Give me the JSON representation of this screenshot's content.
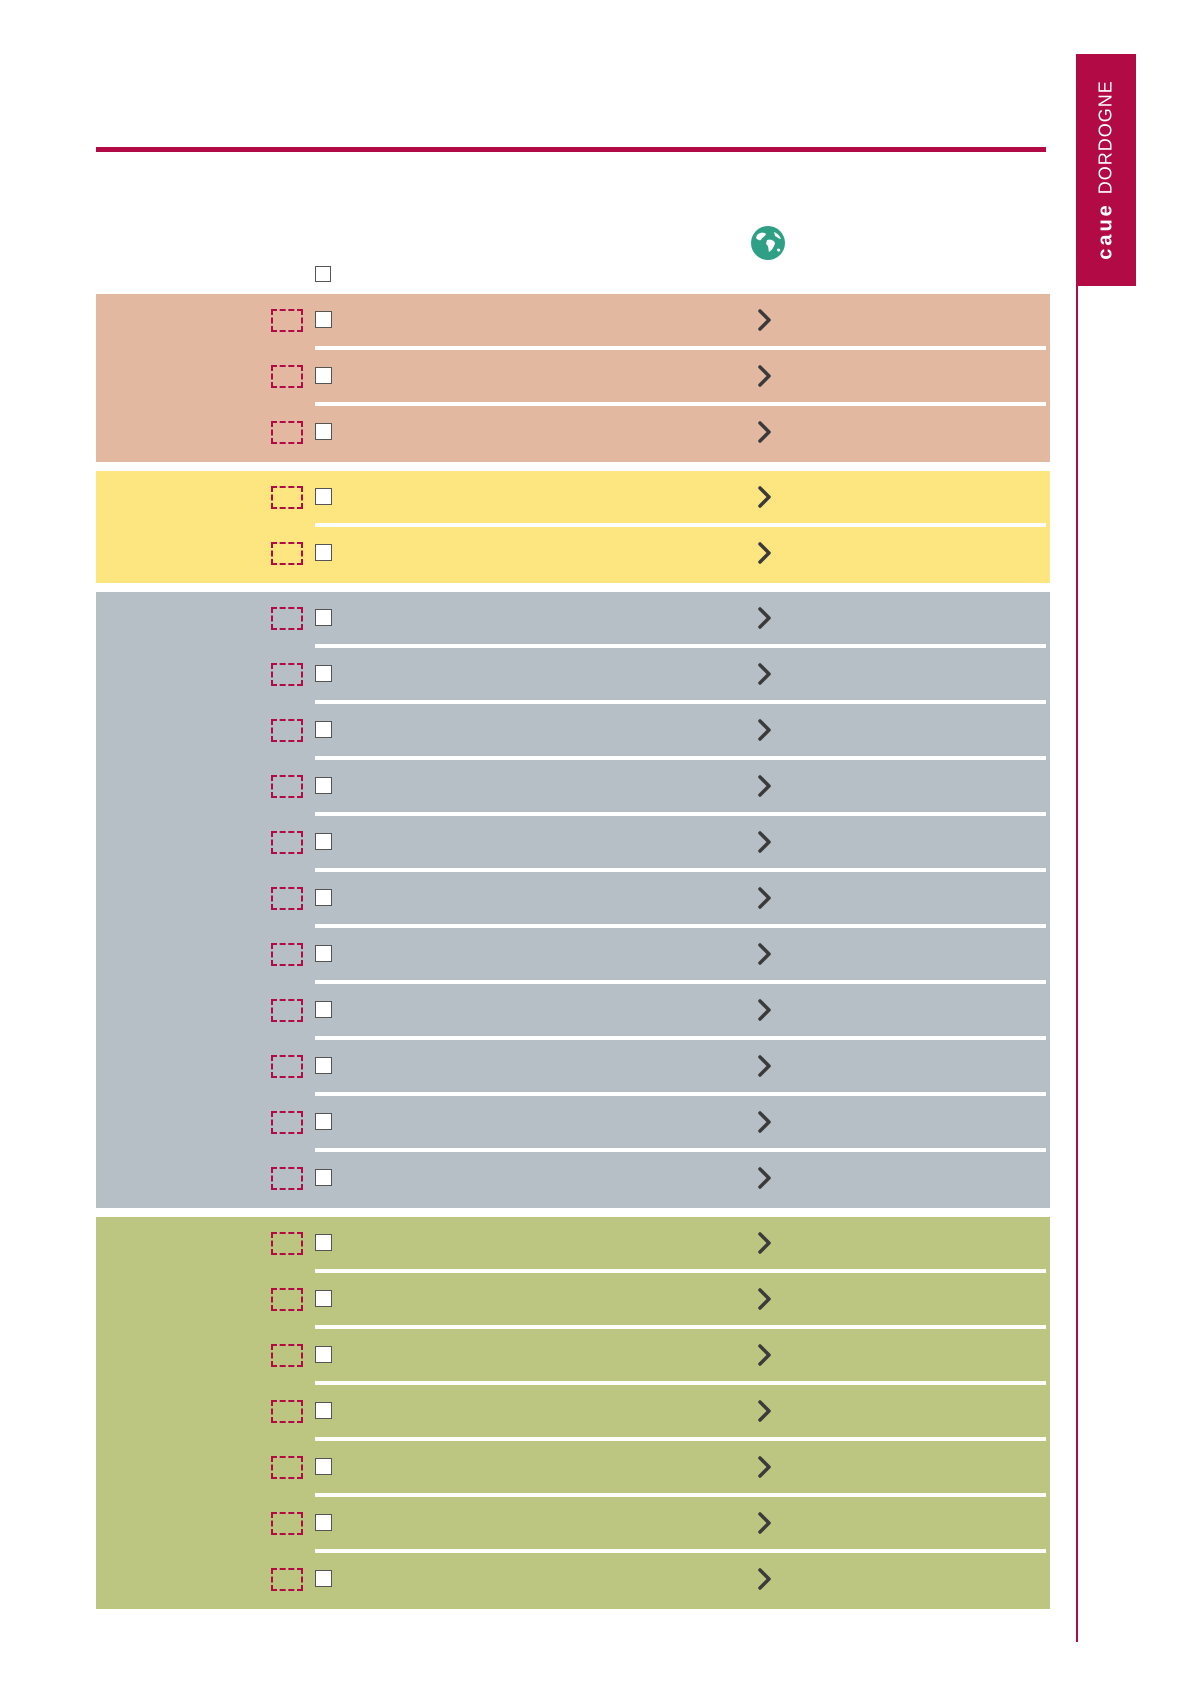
{
  "brand": {
    "bold": "caue",
    "light": "DORDOGNE"
  },
  "colors": {
    "accent": "#b20a45",
    "group_1": "#e3b8a0",
    "group_2": "#fde67f",
    "group_3": "#b5bfc5",
    "group_4": "#bdc680",
    "chevron": "#3a3a3a",
    "globe": "#2f9f86"
  },
  "icons": {
    "globe": "globe-icon",
    "row_arrow": "chevron-right-icon",
    "header_checkbox": "checkbox-icon"
  },
  "groups": [
    {
      "name": "group-1",
      "color_key": "group_1",
      "rows": 3
    },
    {
      "name": "group-2",
      "color_key": "group_2",
      "rows": 2
    },
    {
      "name": "group-3",
      "color_key": "group_3",
      "rows": 11
    },
    {
      "name": "group-4",
      "color_key": "group_4",
      "rows": 7
    }
  ]
}
